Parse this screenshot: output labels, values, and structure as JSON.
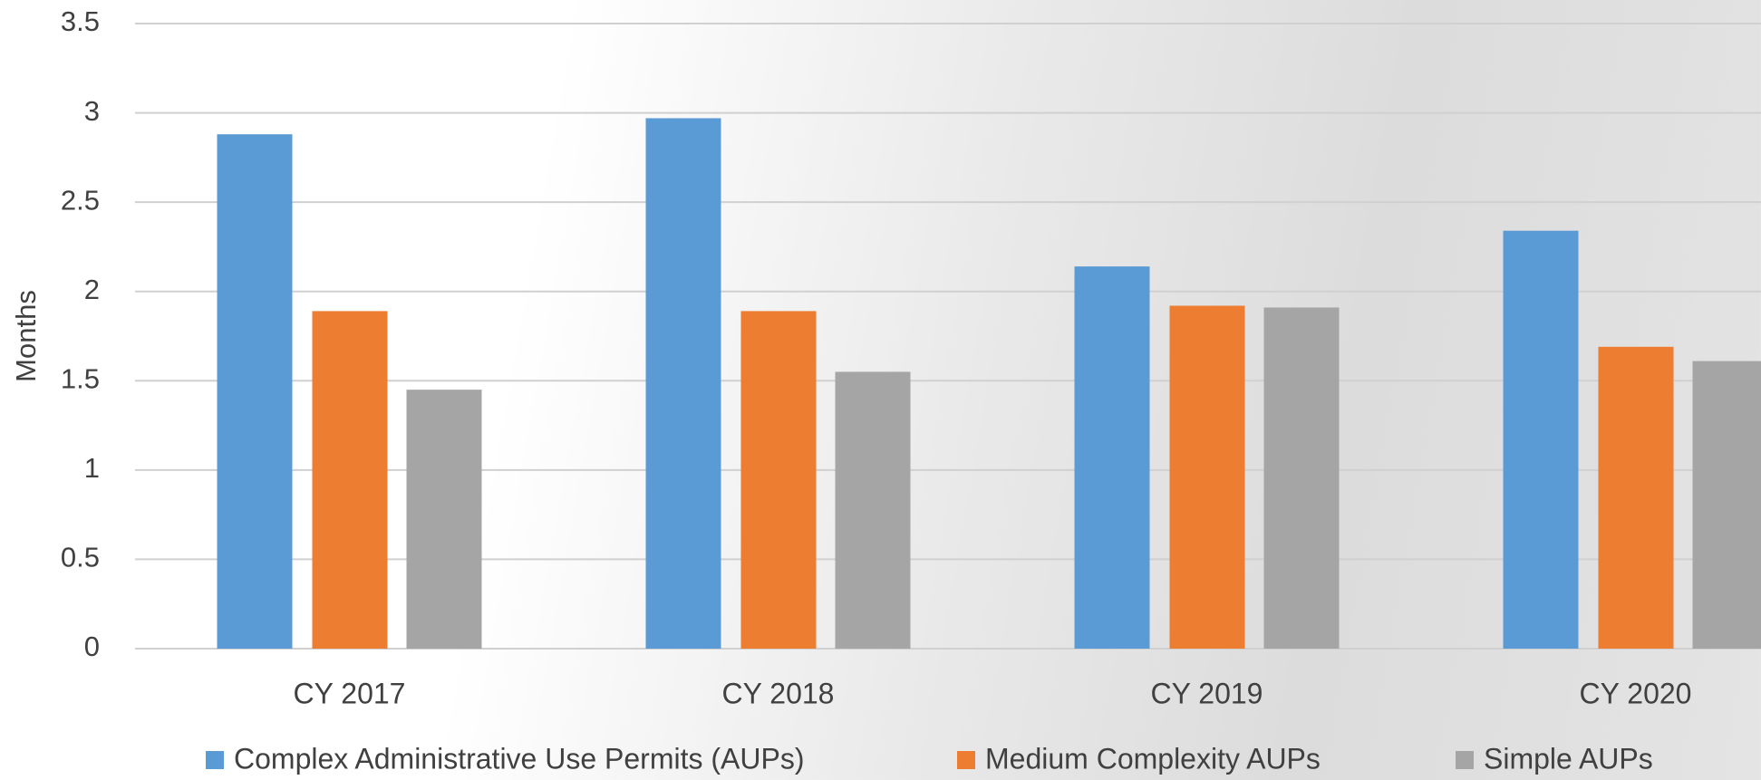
{
  "chart_data": {
    "type": "bar",
    "y_label": "Months",
    "categories": [
      "CY 2017",
      "CY 2018",
      "CY 2019",
      "CY 2020"
    ],
    "series": [
      {
        "name": "Complex Administrative Use Permits (AUPs)",
        "color": "#5b9bd5",
        "values": [
          2.88,
          2.97,
          2.14,
          2.34
        ]
      },
      {
        "name": "Medium Complexity AUPs",
        "color": "#ed7d31",
        "values": [
          1.89,
          1.89,
          1.92,
          1.69
        ]
      },
      {
        "name": "Simple AUPs",
        "color": "#a5a5a5",
        "values": [
          1.45,
          1.55,
          1.91,
          1.61
        ]
      }
    ],
    "ylim": [
      0,
      3.5
    ],
    "yticks": [
      0,
      0.5,
      1,
      1.5,
      2,
      2.5,
      3,
      3.5
    ],
    "grid": true,
    "legend": "bottom"
  }
}
